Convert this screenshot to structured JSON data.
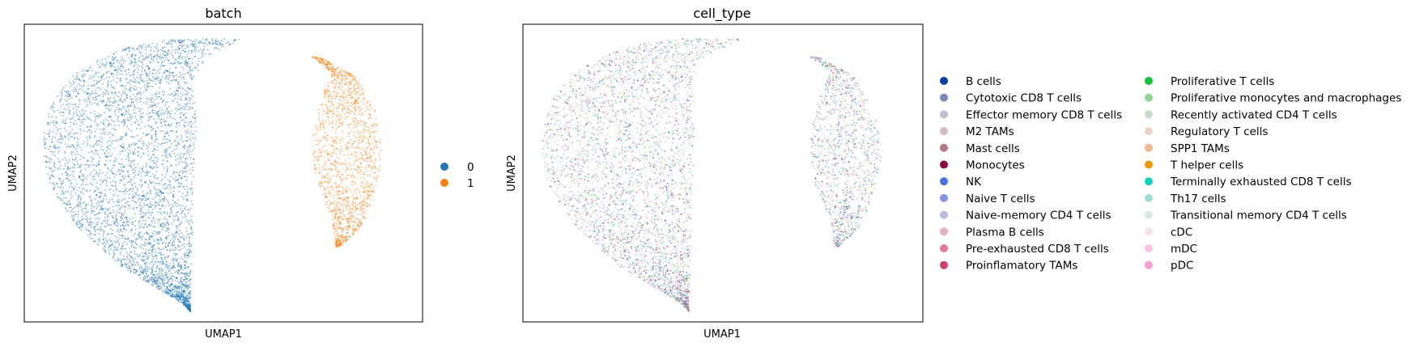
{
  "chart_data": [
    {
      "type": "scatter",
      "title": "batch",
      "xlabel": "UMAP1",
      "ylabel": "UMAP2",
      "grid": false,
      "legend_position": "right",
      "series": [
        {
          "name": "0",
          "color": "#1f77b4",
          "region": "large crescent, left"
        },
        {
          "name": "1",
          "color": "#ff7f0e",
          "region": "small crescent, right"
        }
      ]
    },
    {
      "type": "scatter",
      "title": "cell_type",
      "xlabel": "UMAP1",
      "ylabel": "UMAP2",
      "grid": false,
      "legend_position": "right",
      "legend_columns": 2,
      "series": [
        {
          "name": "B cells",
          "color": "#023fa5"
        },
        {
          "name": "Cytotoxic CD8 T cells",
          "color": "#7d87b9"
        },
        {
          "name": "Effector memory CD8 T cells",
          "color": "#bec1d4"
        },
        {
          "name": "M2 TAMs",
          "color": "#d6bcc0"
        },
        {
          "name": "Mast cells",
          "color": "#bb7784"
        },
        {
          "name": "Monocytes",
          "color": "#8e063b"
        },
        {
          "name": "NK",
          "color": "#4a6fe3"
        },
        {
          "name": "Naive T cells",
          "color": "#8595e1"
        },
        {
          "name": "Naive-memory CD4 T cells",
          "color": "#b5bbe3"
        },
        {
          "name": "Plasma B cells",
          "color": "#e6afb9"
        },
        {
          "name": "Pre-exhausted CD8 T cells",
          "color": "#e07b91"
        },
        {
          "name": "Proinflamatory TAMs",
          "color": "#d33f6a"
        },
        {
          "name": "Proliferative T cells",
          "color": "#11c638"
        },
        {
          "name": "Proliferative monocytes and macrophages",
          "color": "#8dd593"
        },
        {
          "name": "Recently activated CD4 T cells",
          "color": "#c6dec7"
        },
        {
          "name": "Regulatory T cells",
          "color": "#ead3c6"
        },
        {
          "name": "SPP1 TAMs",
          "color": "#f0b98d"
        },
        {
          "name": "T helper cells",
          "color": "#ef9708"
        },
        {
          "name": "Terminally exhausted CD8 T cells",
          "color": "#0fcfc0"
        },
        {
          "name": "Th17 cells",
          "color": "#9cded6"
        },
        {
          "name": "Transitional memory CD4 T cells",
          "color": "#d5eae7"
        },
        {
          "name": "cDC",
          "color": "#f3e1eb"
        },
        {
          "name": "mDC",
          "color": "#f6c4e1"
        },
        {
          "name": "pDC",
          "color": "#f79cd4"
        }
      ]
    }
  ]
}
